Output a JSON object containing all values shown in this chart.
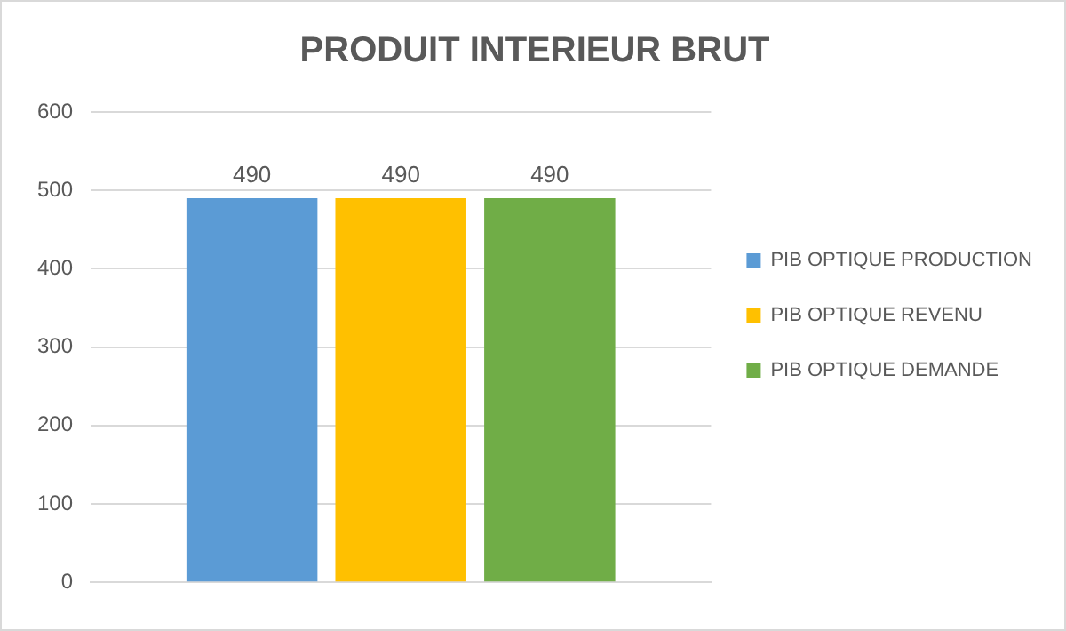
{
  "chart_data": {
    "type": "bar",
    "title": "PRODUIT INTERIEUR BRUT",
    "categories": [
      null
    ],
    "series": [
      {
        "name": "PIB OPTIQUE PRODUCTION",
        "color": "#5b9bd5",
        "values": [
          490
        ]
      },
      {
        "name": "PIB OPTIQUE REVENU",
        "color": "#ffc000",
        "values": [
          490
        ]
      },
      {
        "name": "PIB OPTIQUE DEMANDE",
        "color": "#70ad47",
        "values": [
          490
        ]
      }
    ],
    "ylim": [
      0,
      600
    ],
    "yticks": [
      0,
      100,
      200,
      300,
      400,
      500,
      600
    ],
    "grid": "y",
    "legend": "right",
    "data_labels": true
  }
}
